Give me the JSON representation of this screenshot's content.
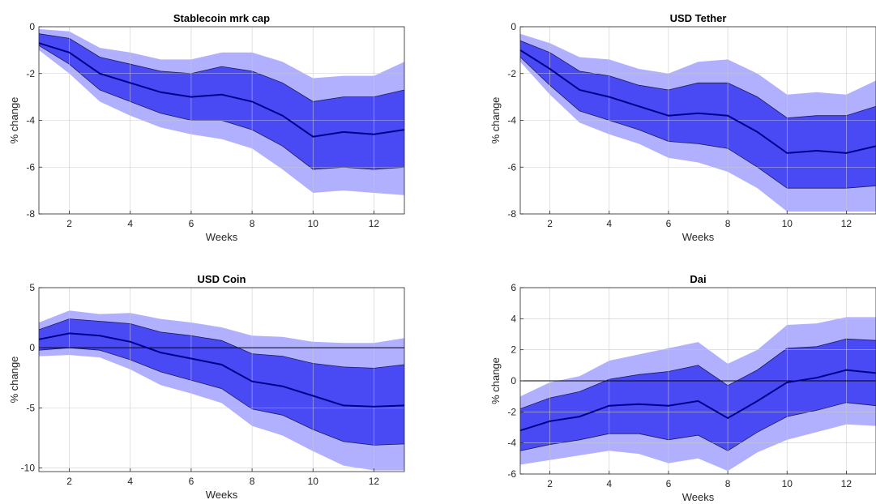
{
  "chart_data": [
    {
      "type": "area",
      "title": "Stablecoin mrk cap",
      "xlabel": "Weeks",
      "ylabel": "% change",
      "xlim": [
        1,
        13
      ],
      "ylim": [
        -8,
        0
      ],
      "xticks": [
        2,
        4,
        6,
        8,
        10,
        12
      ],
      "yticks": [
        -8,
        -6,
        -4,
        -2,
        0
      ],
      "grid": true,
      "zero_line": false,
      "x": [
        1,
        2,
        3,
        4,
        5,
        6,
        7,
        8,
        9,
        10,
        11,
        12,
        13
      ],
      "median": [
        -0.7,
        -1.1,
        -2.0,
        -2.4,
        -2.8,
        -3.0,
        -2.9,
        -3.2,
        -3.8,
        -4.7,
        -4.5,
        -4.6,
        -4.4
      ],
      "inner_upper": [
        -0.3,
        -0.5,
        -1.3,
        -1.6,
        -1.9,
        -2.0,
        -1.7,
        -1.9,
        -2.4,
        -3.2,
        -3.0,
        -3.0,
        -2.7
      ],
      "inner_lower": [
        -0.8,
        -1.6,
        -2.7,
        -3.2,
        -3.7,
        -4.0,
        -4.0,
        -4.4,
        -5.1,
        -6.1,
        -6.0,
        -6.1,
        -6.0
      ],
      "outer_upper": [
        -0.1,
        -0.2,
        -0.9,
        -1.1,
        -1.4,
        -1.4,
        -1.1,
        -1.1,
        -1.5,
        -2.2,
        -2.1,
        -2.1,
        -1.5
      ],
      "outer_lower": [
        -1.0,
        -2.0,
        -3.2,
        -3.8,
        -4.3,
        -4.6,
        -4.8,
        -5.2,
        -6.1,
        -7.1,
        -7.0,
        -7.1,
        -7.2
      ]
    },
    {
      "type": "area",
      "title": "USD Tether",
      "xlabel": "Weeks",
      "ylabel": "% change",
      "xlim": [
        1,
        13
      ],
      "ylim": [
        -8,
        0
      ],
      "xticks": [
        2,
        4,
        6,
        8,
        10,
        12
      ],
      "yticks": [
        -8,
        -6,
        -4,
        -2,
        0
      ],
      "grid": true,
      "zero_line": false,
      "x": [
        1,
        2,
        3,
        4,
        5,
        6,
        7,
        8,
        9,
        10,
        11,
        12,
        13
      ],
      "median": [
        -1.0,
        -1.8,
        -2.7,
        -3.0,
        -3.4,
        -3.8,
        -3.7,
        -3.8,
        -4.5,
        -5.4,
        -5.3,
        -5.4,
        -5.1
      ],
      "inner_upper": [
        -0.6,
        -1.1,
        -1.9,
        -2.1,
        -2.5,
        -2.7,
        -2.4,
        -2.4,
        -3.0,
        -3.9,
        -3.8,
        -3.8,
        -3.4
      ],
      "inner_lower": [
        -1.3,
        -2.5,
        -3.6,
        -4.0,
        -4.4,
        -4.9,
        -5.0,
        -5.2,
        -6.0,
        -6.9,
        -6.9,
        -6.9,
        -6.8
      ],
      "outer_upper": [
        -0.3,
        -0.7,
        -1.3,
        -1.4,
        -1.8,
        -2.0,
        -1.5,
        -1.4,
        -2.0,
        -2.9,
        -2.8,
        -2.9,
        -2.3
      ],
      "outer_lower": [
        -1.5,
        -2.9,
        -4.1,
        -4.6,
        -5.0,
        -5.6,
        -5.8,
        -6.2,
        -6.9,
        -7.9,
        -7.9,
        -7.9,
        -7.9
      ]
    },
    {
      "type": "area",
      "title": "USD Coin",
      "xlabel": "Weeks",
      "ylabel": "% change",
      "xlim": [
        1,
        13
      ],
      "ylim": [
        -10.3,
        5
      ],
      "xticks": [
        2,
        4,
        6,
        8,
        10,
        12
      ],
      "yticks": [
        -10,
        -5,
        0,
        5
      ],
      "grid": true,
      "zero_line": true,
      "x": [
        1,
        2,
        3,
        4,
        5,
        6,
        7,
        8,
        9,
        10,
        11,
        12,
        13
      ],
      "median": [
        0.7,
        1.2,
        1.0,
        0.5,
        -0.4,
        -0.9,
        -1.4,
        -2.8,
        -3.2,
        -4.0,
        -4.8,
        -4.9,
        -4.8
      ],
      "inner_upper": [
        1.5,
        2.4,
        2.2,
        2.0,
        1.3,
        1.0,
        0.6,
        -0.5,
        -0.7,
        -1.3,
        -1.6,
        -1.7,
        -1.4
      ],
      "inner_lower": [
        -0.2,
        0.0,
        -0.2,
        -1.0,
        -2.0,
        -2.7,
        -3.4,
        -5.1,
        -5.6,
        -6.8,
        -7.8,
        -8.1,
        -8.0
      ],
      "outer_upper": [
        2.1,
        3.1,
        2.8,
        2.9,
        2.4,
        2.1,
        1.7,
        1.0,
        0.9,
        0.5,
        0.4,
        0.4,
        0.8
      ],
      "outer_lower": [
        -0.7,
        -0.6,
        -0.8,
        -1.8,
        -3.1,
        -3.8,
        -4.6,
        -6.5,
        -7.3,
        -8.6,
        -9.8,
        -10.2,
        -10.2
      ]
    },
    {
      "type": "area",
      "title": "Dai",
      "xlabel": "Weeks",
      "ylabel": "% change",
      "xlim": [
        1,
        13
      ],
      "ylim": [
        -6,
        6
      ],
      "xticks": [
        2,
        4,
        6,
        8,
        10,
        12
      ],
      "yticks": [
        -6,
        -4,
        -2,
        0,
        2,
        4,
        6
      ],
      "grid": true,
      "zero_line": true,
      "x": [
        1,
        2,
        3,
        4,
        5,
        6,
        7,
        8,
        9,
        10,
        11,
        12,
        13
      ],
      "median": [
        -3.2,
        -2.6,
        -2.3,
        -1.6,
        -1.5,
        -1.6,
        -1.3,
        -2.4,
        -1.3,
        -0.1,
        0.2,
        0.7,
        0.5
      ],
      "inner_upper": [
        -1.8,
        -1.1,
        -0.7,
        0.1,
        0.4,
        0.6,
        1.0,
        -0.3,
        0.7,
        2.1,
        2.2,
        2.7,
        2.6
      ],
      "inner_lower": [
        -4.5,
        -4.1,
        -3.8,
        -3.4,
        -3.4,
        -3.8,
        -3.5,
        -4.5,
        -3.3,
        -2.3,
        -1.9,
        -1.4,
        -1.6
      ],
      "outer_upper": [
        -1.0,
        -0.1,
        0.3,
        1.3,
        1.7,
        2.1,
        2.5,
        1.1,
        2.0,
        3.6,
        3.7,
        4.1,
        4.1
      ],
      "outer_lower": [
        -5.4,
        -5.1,
        -4.8,
        -4.5,
        -4.7,
        -5.3,
        -5.0,
        -5.8,
        -4.6,
        -3.8,
        -3.3,
        -2.8,
        -2.9
      ]
    }
  ],
  "colors": {
    "outer_band": "#b0b0ff",
    "inner_band": "#4a4af5",
    "median_line": "#00008b",
    "band_edge": "#1a1a55",
    "grid": "#c8c8c8",
    "axis": "#262626"
  }
}
